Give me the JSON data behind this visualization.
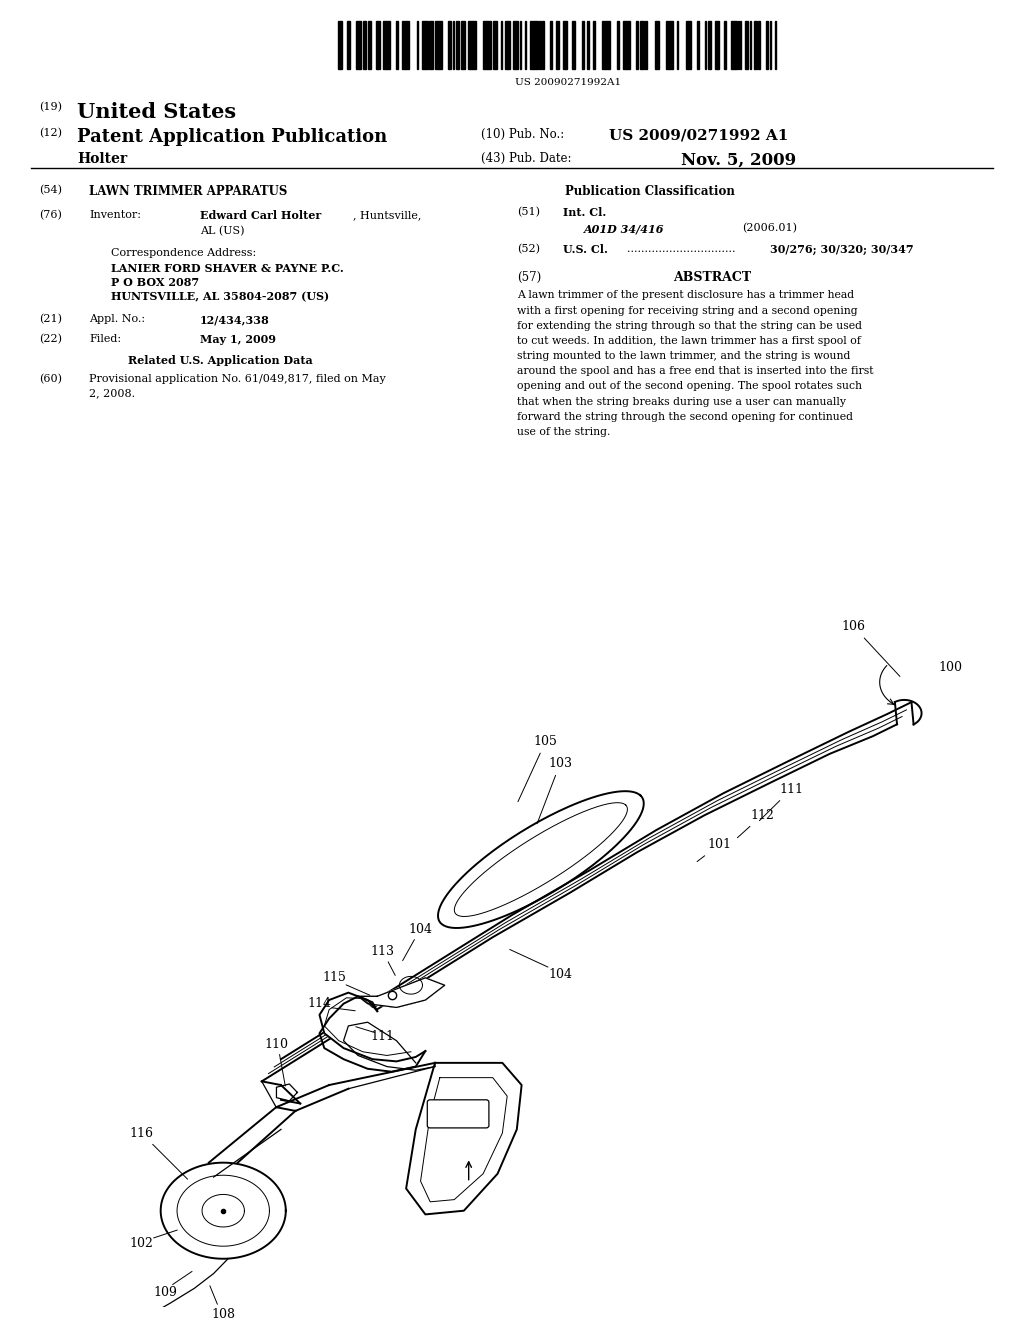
{
  "background_color": "#ffffff",
  "barcode_text": "US 20090271992A1",
  "country": "United States",
  "pub_type_num": "(19)",
  "pub_type_num2": "(12)",
  "pub_type": "Patent Application Publication",
  "pub_no_label": "(10) Pub. No.:",
  "pub_no": "US 2009/0271992 A1",
  "pub_date_label": "(43) Pub. Date:",
  "pub_date": "Nov. 5, 2009",
  "inventor_name": "Holter",
  "title_num": "(54)",
  "title_label": "LAWN TRIMMER APPARATUS",
  "inventor_num": "(76)",
  "inventor_label": "Inventor:",
  "inventor_bold": "Edward Carl Holter",
  "inventor_rest": ", Huntsville,",
  "inventor_line2": "AL (US)",
  "corr_label": "Correspondence Address:",
  "corr_line1": "LANIER FORD SHAVER & PAYNE P.C.",
  "corr_line2": "P O BOX 2087",
  "corr_line3": "HUNTSVILLE, AL 35804-2087 (US)",
  "appl_num": "(21)",
  "appl_label": "Appl. No.:",
  "appl_value": "12/434,338",
  "filed_num": "(22)",
  "filed_label": "Filed:",
  "filed_value": "May 1, 2009",
  "related_label": "Related U.S. Application Data",
  "related_num": "(60)",
  "related_text1": "Provisional application No. 61/049,817, filed on May",
  "related_text2": "2, 2008.",
  "pub_class_label": "Publication Classification",
  "int_cl_num": "(51)",
  "int_cl_label": "Int. Cl.",
  "int_cl_value": "A01D 34/416",
  "int_cl_year": "(2006.01)",
  "us_cl_num": "(52)",
  "us_cl_label": "U.S. Cl.",
  "us_cl_dots": "...............................",
  "us_cl_value": "30/276; 30/320; 30/347",
  "abstract_num": "(57)",
  "abstract_label": "ABSTRACT",
  "abstract_lines": [
    "A lawn trimmer of the present disclosure has a trimmer head",
    "with a first opening for receiving string and a second opening",
    "for extending the string through so that the string can be used",
    "to cut weeds. In addition, the lawn trimmer has a first spool of",
    "string mounted to the lawn trimmer, and the string is wound",
    "around the spool and has a free end that is inserted into the first",
    "opening and out of the second opening. The spool rotates such",
    "that when the string breaks during use a user can manually",
    "forward the string through the second opening for continued",
    "use of the string."
  ]
}
